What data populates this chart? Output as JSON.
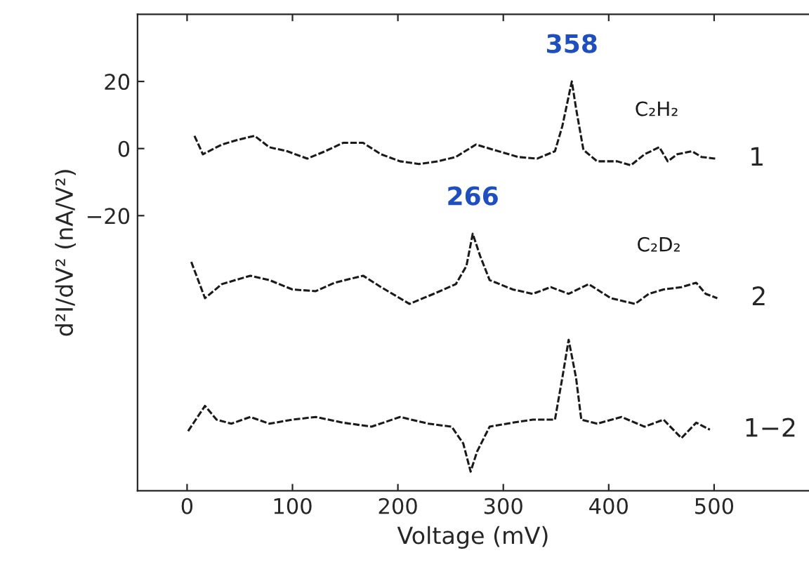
{
  "chart_data": {
    "type": "line",
    "xlabel": "Voltage (mV)",
    "ylabel": "d²I/dV² (nA/V²)",
    "xlim": [
      -47,
      590
    ],
    "ylim": [
      -102,
      40
    ],
    "xticks": [
      0,
      100,
      200,
      300,
      400,
      500
    ],
    "yticks": [
      20,
      0,
      -20
    ],
    "grid": false,
    "marker": "none",
    "line_style": "dashed",
    "series": [
      {
        "name": "1",
        "color": "#1a1a1a",
        "x": [
          7,
          15,
          33,
          47,
          64,
          78,
          95,
          114,
          131,
          148,
          167,
          184,
          202,
          220,
          238,
          255,
          274,
          291,
          314,
          332,
          349,
          356,
          365,
          369,
          376,
          389,
          408,
          421,
          434,
          448,
          456,
          465,
          479,
          488,
          501
        ],
        "values": [
          3.8,
          -1.7,
          1.2,
          2.5,
          3.8,
          0.4,
          -0.8,
          -3,
          -0.8,
          1.7,
          1.7,
          -1.7,
          -3.8,
          -4.6,
          -3.8,
          -2.5,
          1.2,
          -0.4,
          -2.5,
          -3,
          -0.8,
          6.7,
          20,
          12,
          -0.4,
          -3.8,
          -3.8,
          -5,
          -1.7,
          0.4,
          -3.8,
          -1.7,
          -0.8,
          -2.5,
          -3
        ]
      },
      {
        "name": "2",
        "color": "#1a1a1a",
        "x": [
          4,
          17,
          33,
          60,
          78,
          100,
          122,
          140,
          167,
          184,
          211,
          234,
          255,
          265,
          271,
          278,
          287,
          309,
          328,
          345,
          362,
          381,
          402,
          425,
          438,
          452,
          469,
          483,
          492,
          503
        ],
        "values": [
          -33.8,
          -44.6,
          -40.4,
          -37.9,
          -39.2,
          -42,
          -42.5,
          -40,
          -37.9,
          -41.3,
          -46.3,
          -43.3,
          -40.4,
          -35,
          -25.4,
          -32,
          -39.2,
          -42,
          -43.3,
          -41.3,
          -43.3,
          -40.4,
          -44.6,
          -46.3,
          -43.3,
          -42,
          -41.3,
          -40,
          -43.3,
          -44.6
        ]
      },
      {
        "name": "1−2",
        "color": "#1a1a1a",
        "x": [
          1,
          17,
          28,
          42,
          60,
          78,
          100,
          122,
          148,
          175,
          202,
          229,
          251,
          262,
          269,
          275,
          287,
          309,
          328,
          349,
          356,
          362,
          369,
          374,
          389,
          412,
          434,
          452,
          469,
          483,
          496
        ],
        "values": [
          -84.2,
          -76.7,
          -80.8,
          -82,
          -80,
          -82,
          -80.8,
          -80,
          -81.7,
          -82.9,
          -80,
          -82,
          -82.9,
          -87.9,
          -96.3,
          -90.4,
          -82.9,
          -81.7,
          -80.8,
          -80.8,
          -68.3,
          -57,
          -68.3,
          -80.8,
          -82,
          -80,
          -82.9,
          -80.8,
          -86.3,
          -81.7,
          -83.8
        ]
      }
    ],
    "annotations": [
      "C₂H₂",
      "C₂D₂",
      {
        "text": "358",
        "x": 365,
        "y": 20
      },
      {
        "text": "266",
        "x": 271,
        "y": -25.4
      }
    ]
  }
}
